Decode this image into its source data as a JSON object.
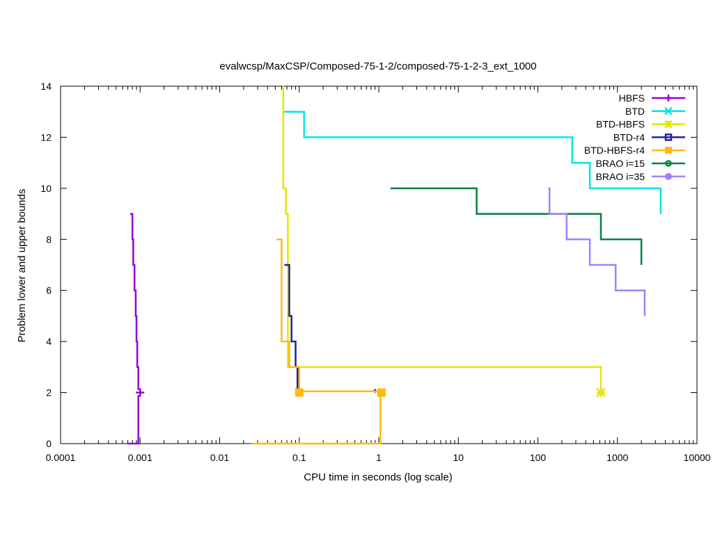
{
  "chart_data": {
    "type": "line",
    "title": "evalwcsp/MaxCSP/Composed-75-1-2/composed-75-1-2-3_ext_1000",
    "xlabel": "CPU time in seconds (log scale)",
    "ylabel": "Problem lower and upper bounds",
    "x_scale": "log",
    "xlim": [
      0.0001,
      10000
    ],
    "ylim": [
      0,
      14
    ],
    "x_ticks": [
      0.0001,
      0.001,
      0.01,
      0.1,
      1,
      10,
      100,
      1000,
      10000
    ],
    "x_tick_labels": [
      "0.0001",
      "0.001",
      "0.01",
      "0.1",
      "1",
      "10",
      "100",
      "1000",
      "10000"
    ],
    "y_ticks": [
      0,
      2,
      4,
      6,
      8,
      10,
      12,
      14
    ],
    "y_tick_labels": [
      "0",
      "2",
      "4",
      "6",
      "8",
      "10",
      "12",
      "14"
    ],
    "legend_position": "top-right",
    "series": [
      {
        "name": "HBFS",
        "color": "#9400d3",
        "marker": "plus",
        "upper": [
          [
            0.00075,
            9
          ],
          [
            0.0008,
            8
          ],
          [
            0.00082,
            7
          ],
          [
            0.00085,
            6
          ],
          [
            0.00088,
            5
          ],
          [
            0.0009,
            4
          ],
          [
            0.00092,
            3
          ],
          [
            0.00095,
            2.1
          ]
        ],
        "lower": [
          [
            0.0007,
            0
          ],
          [
            0.00093,
            0
          ],
          [
            0.00095,
            1.9
          ]
        ],
        "marker_points": [
          [
            0.001,
            2
          ]
        ]
      },
      {
        "name": "BTD",
        "color": "#00e5e5",
        "marker": "cross",
        "upper": [
          [
            0.065,
            13
          ],
          [
            0.115,
            12
          ],
          [
            270,
            11
          ],
          [
            450,
            10
          ],
          [
            3500,
            9
          ]
        ],
        "lower": [],
        "marker_points": []
      },
      {
        "name": "BTD-HBFS",
        "color": "#e5e500",
        "marker": "star",
        "upper": [
          [
            0.062,
            14
          ],
          [
            0.063,
            10
          ],
          [
            0.068,
            9
          ],
          [
            0.072,
            3
          ],
          [
            620,
            2.05
          ]
        ],
        "lower": [],
        "marker_points": [
          [
            620,
            2
          ]
        ]
      },
      {
        "name": "BTD-r4",
        "color": "#2020a0",
        "marker": "square-open",
        "upper": [
          [
            0.065,
            7
          ],
          [
            0.075,
            5
          ],
          [
            0.08,
            4
          ],
          [
            0.09,
            3
          ],
          [
            0.095,
            2.1
          ],
          [
            0.095,
            2.1
          ]
        ],
        "lower": [
          [
            0.87,
            2.1
          ],
          [
            0.9,
            2
          ]
        ],
        "marker_points": []
      },
      {
        "name": "BTD-HBFS-r4",
        "color": "#ffb90f",
        "marker": "square-filled",
        "upper": [
          [
            0.052,
            8
          ],
          [
            0.06,
            4
          ],
          [
            0.075,
            3
          ],
          [
            0.1,
            2.05
          ],
          [
            1.08,
            2.05
          ]
        ],
        "lower": [
          [
            0.025,
            0
          ],
          [
            1.0,
            0
          ],
          [
            1.05,
            1.95
          ]
        ],
        "marker_points": [
          [
            0.1,
            2
          ],
          [
            1.08,
            2
          ]
        ]
      },
      {
        "name": "BRAO i=15",
        "color": "#008040",
        "marker": "circle-open",
        "upper": [
          [
            1.4,
            10
          ],
          [
            17,
            9
          ],
          [
            620,
            8
          ],
          [
            2000,
            7
          ]
        ],
        "lower": [],
        "marker_points": []
      },
      {
        "name": "BRAO i=35",
        "color": "#a080ff",
        "marker": "circle-filled",
        "upper": [
          [
            135,
            10
          ],
          [
            140,
            9
          ],
          [
            230,
            8
          ],
          [
            450,
            7
          ],
          [
            950,
            6
          ],
          [
            2200,
            5
          ]
        ],
        "lower": [],
        "marker_points": []
      }
    ]
  }
}
